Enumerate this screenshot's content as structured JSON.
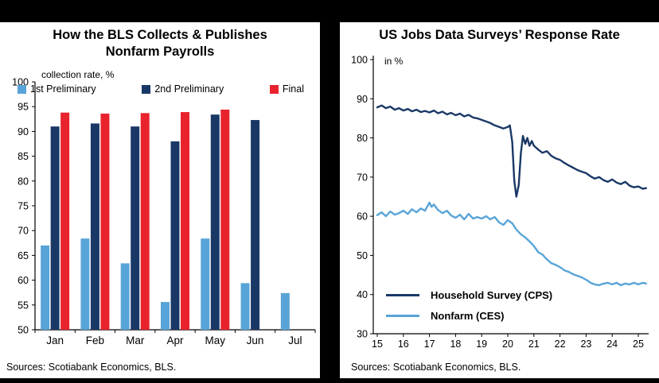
{
  "colors": {
    "light_blue": "#58A4D8",
    "dark_navy": "#1A3866",
    "red": "#E8232E",
    "frame_black": "#000000",
    "axis_black": "#000000",
    "panel_white": "#FFFFFF"
  },
  "left_panel": {
    "title_line1": "How the BLS Collects & Publishes",
    "title_line2": "Nonfarm Payrolls",
    "axis_unit_label": "collection rate, %",
    "legend": [
      {
        "label": "1st Preliminary"
      },
      {
        "label": "2nd Preliminary"
      },
      {
        "label": "Final"
      }
    ],
    "sources": "Sources: Scotiabank Economics, BLS."
  },
  "right_panel": {
    "title": "US Jobs Data Surveys’ Response Rate",
    "axis_unit_label": "in %",
    "legend": [
      {
        "label": "Household Survey (CPS)"
      },
      {
        "label": "Nonfarm (CES)"
      }
    ],
    "sources": "Sources: Scotiabank Economics, BLS."
  },
  "chart_data": [
    {
      "type": "bar",
      "title": "How the BLS Collects & Publishes Nonfarm Payrolls",
      "xlabel": "",
      "ylabel": "collection rate, %",
      "categories": [
        "Jan",
        "Feb",
        "Mar",
        "Apr",
        "May",
        "Jun",
        "Jul"
      ],
      "series": [
        {
          "name": "1st Preliminary",
          "values": [
            67,
            68.4,
            63.4,
            55.6,
            68.4,
            59.4,
            57.4
          ]
        },
        {
          "name": "2nd Preliminary",
          "values": [
            91,
            91.6,
            91,
            88,
            93.4,
            92.3,
            null
          ]
        },
        {
          "name": "Final",
          "values": [
            93.8,
            93.6,
            93.7,
            93.9,
            94.4,
            null,
            null
          ]
        }
      ],
      "series_colors": [
        "light_blue",
        "dark_navy",
        "red"
      ],
      "ylim": [
        50,
        100
      ],
      "yticks": [
        50,
        55,
        60,
        65,
        70,
        75,
        80,
        85,
        90,
        95,
        100
      ],
      "grid": false,
      "legend_position": "top"
    },
    {
      "type": "line",
      "title": "US Jobs Data Surveys’ Response Rate",
      "xlabel": "",
      "ylabel": "in %",
      "ylim": [
        30,
        100
      ],
      "yticks": [
        30,
        40,
        50,
        60,
        70,
        80,
        90,
        100
      ],
      "xlim": [
        14.85,
        25.4
      ],
      "xticks": [
        15,
        16,
        17,
        18,
        19,
        20,
        21,
        22,
        23,
        24,
        25
      ],
      "series": [
        {
          "name": "Household Survey (CPS)",
          "points": [
            [
              15,
              87.8
            ],
            [
              15.17,
              88.3
            ],
            [
              15.33,
              87.6
            ],
            [
              15.5,
              88
            ],
            [
              15.67,
              87.2
            ],
            [
              15.83,
              87.6
            ],
            [
              16,
              87
            ],
            [
              16.17,
              87.4
            ],
            [
              16.33,
              86.8
            ],
            [
              16.5,
              87.2
            ],
            [
              16.67,
              86.6
            ],
            [
              16.83,
              86.9
            ],
            [
              17,
              86.5
            ],
            [
              17.17,
              87
            ],
            [
              17.33,
              86.3
            ],
            [
              17.5,
              86.7
            ],
            [
              17.67,
              86
            ],
            [
              17.83,
              86.4
            ],
            [
              18,
              85.8
            ],
            [
              18.17,
              86.2
            ],
            [
              18.33,
              85.5
            ],
            [
              18.5,
              85.9
            ],
            [
              18.67,
              85.2
            ],
            [
              18.83,
              85
            ],
            [
              19,
              84.6
            ],
            [
              19.17,
              84.2
            ],
            [
              19.33,
              83.8
            ],
            [
              19.5,
              83.2
            ],
            [
              19.67,
              82.8
            ],
            [
              19.83,
              82.4
            ],
            [
              20,
              82.8
            ],
            [
              20.08,
              83.2
            ],
            [
              20.17,
              79
            ],
            [
              20.25,
              69
            ],
            [
              20.33,
              65
            ],
            [
              20.42,
              68
            ],
            [
              20.5,
              76
            ],
            [
              20.58,
              80.5
            ],
            [
              20.67,
              78.5
            ],
            [
              20.75,
              80
            ],
            [
              20.83,
              78
            ],
            [
              20.92,
              79.2
            ],
            [
              21,
              78
            ],
            [
              21.17,
              77
            ],
            [
              21.33,
              76.2
            ],
            [
              21.5,
              76.6
            ],
            [
              21.67,
              75.4
            ],
            [
              21.83,
              74.8
            ],
            [
              22,
              74.4
            ],
            [
              22.17,
              73.6
            ],
            [
              22.33,
              73
            ],
            [
              22.5,
              72.4
            ],
            [
              22.67,
              71.8
            ],
            [
              22.83,
              71.4
            ],
            [
              23,
              71
            ],
            [
              23.17,
              70.2
            ],
            [
              23.33,
              69.6
            ],
            [
              23.5,
              70
            ],
            [
              23.67,
              69.2
            ],
            [
              23.83,
              68.8
            ],
            [
              24,
              69.4
            ],
            [
              24.17,
              68.6
            ],
            [
              24.33,
              68.2
            ],
            [
              24.5,
              68.8
            ],
            [
              24.67,
              67.8
            ],
            [
              24.83,
              67.4
            ],
            [
              25,
              67.6
            ],
            [
              25.17,
              67
            ],
            [
              25.3,
              67.2
            ]
          ]
        },
        {
          "name": "Nonfarm (CES)",
          "points": [
            [
              15,
              60.3
            ],
            [
              15.17,
              61
            ],
            [
              15.33,
              60
            ],
            [
              15.5,
              61.2
            ],
            [
              15.67,
              60.4
            ],
            [
              15.83,
              60.8
            ],
            [
              16,
              61.4
            ],
            [
              16.17,
              60.6
            ],
            [
              16.33,
              61.8
            ],
            [
              16.5,
              61
            ],
            [
              16.67,
              62
            ],
            [
              16.83,
              61.4
            ],
            [
              17,
              63.5
            ],
            [
              17.08,
              62.4
            ],
            [
              17.17,
              63
            ],
            [
              17.33,
              61.6
            ],
            [
              17.5,
              60.8
            ],
            [
              17.67,
              61.4
            ],
            [
              17.83,
              60.2
            ],
            [
              18,
              59.6
            ],
            [
              18.17,
              60.4
            ],
            [
              18.33,
              59.2
            ],
            [
              18.5,
              60.6
            ],
            [
              18.67,
              59.4
            ],
            [
              18.83,
              59.8
            ],
            [
              19,
              59.4
            ],
            [
              19.17,
              60
            ],
            [
              19.33,
              59.2
            ],
            [
              19.5,
              59.8
            ],
            [
              19.67,
              58.4
            ],
            [
              19.83,
              57.8
            ],
            [
              20,
              59
            ],
            [
              20.17,
              58.2
            ],
            [
              20.33,
              56.6
            ],
            [
              20.5,
              55.4
            ],
            [
              20.67,
              54.6
            ],
            [
              20.83,
              53.6
            ],
            [
              21,
              52.4
            ],
            [
              21.17,
              50.8
            ],
            [
              21.33,
              50.2
            ],
            [
              21.5,
              49
            ],
            [
              21.67,
              48
            ],
            [
              21.83,
              47.6
            ],
            [
              22,
              47
            ],
            [
              22.17,
              46.2
            ],
            [
              22.33,
              45.8
            ],
            [
              22.5,
              45.2
            ],
            [
              22.67,
              44.8
            ],
            [
              22.83,
              44.4
            ],
            [
              23,
              43.8
            ],
            [
              23.17,
              43
            ],
            [
              23.33,
              42.6
            ],
            [
              23.5,
              42.4
            ],
            [
              23.67,
              42.8
            ],
            [
              23.83,
              43
            ],
            [
              24,
              42.6
            ],
            [
              24.17,
              43
            ],
            [
              24.33,
              42.4
            ],
            [
              24.5,
              42.8
            ],
            [
              24.67,
              42.6
            ],
            [
              24.83,
              43
            ],
            [
              25,
              42.6
            ],
            [
              25.17,
              43
            ],
            [
              25.3,
              42.8
            ]
          ]
        }
      ],
      "series_colors": [
        "dark_navy",
        "light_blue"
      ],
      "grid": false,
      "legend_position": "bottom-left"
    }
  ]
}
